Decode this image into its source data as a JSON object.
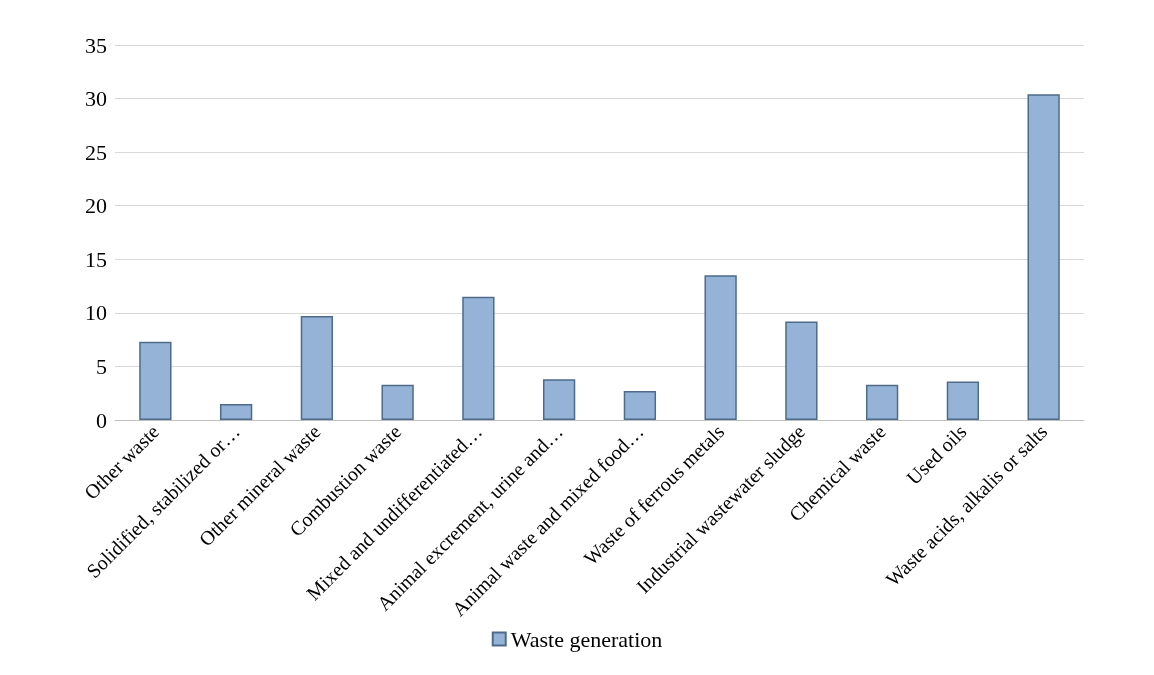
{
  "chart_data": {
    "type": "bar",
    "categories": [
      "Other waste",
      "Solidified, stabilized or…",
      "Other mineral waste",
      "Combustion waste",
      "Mixed and undifferentiated…",
      "Animal excrement, urine and…",
      "Animal waste and mixed food…",
      "Waste of ferrous metals",
      "Industrial wastewater sludge",
      "Chemical waste",
      "Used oils",
      "Waste acids, alkalis or salts"
    ],
    "series": [
      {
        "name": "Waste generation",
        "color": "#95b3d7",
        "values": [
          7.3,
          1.5,
          9.7,
          3.3,
          11.5,
          3.8,
          2.7,
          13.5,
          9.2,
          3.3,
          3.6,
          30.4
        ]
      }
    ],
    "ylim": [
      0,
      35
    ],
    "yticks": [
      0,
      5,
      10,
      15,
      20,
      25,
      30,
      35
    ],
    "grid": "y",
    "legend": "bottom"
  }
}
